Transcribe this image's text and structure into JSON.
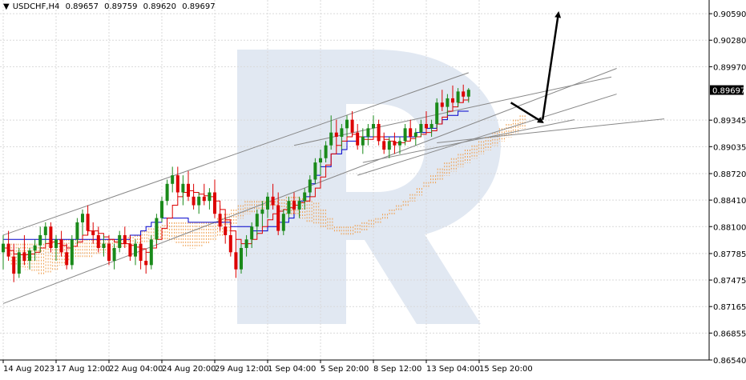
{
  "header": {
    "symbol_label": "USDCHF,H4",
    "open": "0.89657",
    "high": "0.89759",
    "low": "0.89620",
    "close": "0.89697"
  },
  "chart_data": {
    "type": "candlestick",
    "title": "USDCHF,H4",
    "ylim": [
      0.8654,
      0.9075
    ],
    "y_ticks": [
      "0.90590",
      "0.90280",
      "0.89970",
      "0.89345",
      "0.89035",
      "0.88720",
      "0.88410",
      "0.88100",
      "0.87785",
      "0.87475",
      "0.87165",
      "0.86855",
      "0.86540"
    ],
    "x_ticks": [
      "14 Aug 2023",
      "17 Aug 12:00",
      "22 Aug 04:00",
      "24 Aug 20:00",
      "29 Aug 12:00",
      "1 Sep 04:00",
      "5 Sep 20:00",
      "8 Sep 12:00",
      "13 Sep 04:00",
      "15 Sep 20:00"
    ],
    "current_price_label": "0.89697",
    "current_price": 0.89697,
    "colors": {
      "bull": "#1a8a1a",
      "bear": "#dd0000",
      "tenkan": "#dd0000",
      "kijun": "#0000cc",
      "cloud": "#f0a050",
      "channel": "#888888",
      "arrow": "#000000",
      "grid": "#d9d9d9",
      "watermark": "#dce4f0"
    },
    "candles_ohlc": [
      [
        0.878,
        0.88,
        0.876,
        0.879
      ],
      [
        0.879,
        0.8805,
        0.877,
        0.8775
      ],
      [
        0.8775,
        0.879,
        0.8745,
        0.8755
      ],
      [
        0.8755,
        0.8785,
        0.875,
        0.878
      ],
      [
        0.878,
        0.88,
        0.8765,
        0.877
      ],
      [
        0.877,
        0.8785,
        0.876,
        0.8782
      ],
      [
        0.8782,
        0.8795,
        0.877,
        0.8788
      ],
      [
        0.8788,
        0.881,
        0.878,
        0.88
      ],
      [
        0.88,
        0.8815,
        0.879,
        0.881
      ],
      [
        0.881,
        0.8815,
        0.878,
        0.8785
      ],
      [
        0.8785,
        0.88,
        0.877,
        0.8795
      ],
      [
        0.8795,
        0.8805,
        0.8775,
        0.878
      ],
      [
        0.878,
        0.879,
        0.876,
        0.8765
      ],
      [
        0.8765,
        0.88,
        0.876,
        0.8795
      ],
      [
        0.8795,
        0.882,
        0.879,
        0.8815
      ],
      [
        0.8815,
        0.883,
        0.88,
        0.8825
      ],
      [
        0.8825,
        0.8835,
        0.88,
        0.8805
      ],
      [
        0.8805,
        0.8815,
        0.879,
        0.88
      ],
      [
        0.88,
        0.881,
        0.878,
        0.8785
      ],
      [
        0.8785,
        0.88,
        0.8775,
        0.879
      ],
      [
        0.879,
        0.88,
        0.8765,
        0.877
      ],
      [
        0.877,
        0.879,
        0.876,
        0.8785
      ],
      [
        0.8785,
        0.8805,
        0.878,
        0.88
      ],
      [
        0.88,
        0.881,
        0.8785,
        0.879
      ],
      [
        0.879,
        0.88,
        0.877,
        0.8775
      ],
      [
        0.8775,
        0.8795,
        0.8765,
        0.879
      ],
      [
        0.879,
        0.88,
        0.876,
        0.877
      ],
      [
        0.877,
        0.878,
        0.8755,
        0.8765
      ],
      [
        0.8765,
        0.88,
        0.876,
        0.8795
      ],
      [
        0.8795,
        0.8825,
        0.879,
        0.882
      ],
      [
        0.882,
        0.8845,
        0.8815,
        0.884
      ],
      [
        0.884,
        0.8865,
        0.8835,
        0.886
      ],
      [
        0.886,
        0.888,
        0.885,
        0.887
      ],
      [
        0.887,
        0.888,
        0.8845,
        0.885
      ],
      [
        0.885,
        0.887,
        0.8835,
        0.886
      ],
      [
        0.886,
        0.8875,
        0.884,
        0.8845
      ],
      [
        0.8845,
        0.886,
        0.883,
        0.8835
      ],
      [
        0.8835,
        0.885,
        0.8825,
        0.8845
      ],
      [
        0.8845,
        0.886,
        0.8835,
        0.884
      ],
      [
        0.884,
        0.8855,
        0.883,
        0.885
      ],
      [
        0.885,
        0.8865,
        0.882,
        0.8825
      ],
      [
        0.8825,
        0.8835,
        0.8805,
        0.881
      ],
      [
        0.881,
        0.8825,
        0.879,
        0.88
      ],
      [
        0.88,
        0.881,
        0.8775,
        0.878
      ],
      [
        0.878,
        0.8795,
        0.875,
        0.876
      ],
      [
        0.876,
        0.879,
        0.8755,
        0.8785
      ],
      [
        0.8785,
        0.88,
        0.8775,
        0.8795
      ],
      [
        0.8795,
        0.8815,
        0.8785,
        0.881
      ],
      [
        0.881,
        0.883,
        0.88,
        0.8825
      ],
      [
        0.8825,
        0.884,
        0.881,
        0.883
      ],
      [
        0.883,
        0.885,
        0.882,
        0.8845
      ],
      [
        0.8845,
        0.886,
        0.883,
        0.8835
      ],
      [
        0.8835,
        0.885,
        0.88,
        0.8805
      ],
      [
        0.8805,
        0.883,
        0.88,
        0.8825
      ],
      [
        0.8825,
        0.8845,
        0.882,
        0.884
      ],
      [
        0.884,
        0.885,
        0.8825,
        0.883
      ],
      [
        0.883,
        0.8845,
        0.882,
        0.884
      ],
      [
        0.884,
        0.8855,
        0.883,
        0.885
      ],
      [
        0.885,
        0.887,
        0.8845,
        0.8865
      ],
      [
        0.8865,
        0.889,
        0.886,
        0.8885
      ],
      [
        0.8885,
        0.89,
        0.887,
        0.889
      ],
      [
        0.889,
        0.891,
        0.8885,
        0.8905
      ],
      [
        0.8905,
        0.894,
        0.89,
        0.892
      ],
      [
        0.892,
        0.8935,
        0.8905,
        0.8915
      ],
      [
        0.8915,
        0.893,
        0.89,
        0.8925
      ],
      [
        0.8925,
        0.894,
        0.8915,
        0.8935
      ],
      [
        0.8935,
        0.8945,
        0.8915,
        0.892
      ],
      [
        0.892,
        0.893,
        0.89,
        0.8905
      ],
      [
        0.8905,
        0.8925,
        0.8895,
        0.8915
      ],
      [
        0.8915,
        0.893,
        0.8905,
        0.8925
      ],
      [
        0.8925,
        0.894,
        0.8915,
        0.893
      ],
      [
        0.893,
        0.8935,
        0.8905,
        0.891
      ],
      [
        0.891,
        0.892,
        0.8895,
        0.89
      ],
      [
        0.89,
        0.8915,
        0.889,
        0.891
      ],
      [
        0.891,
        0.892,
        0.8895,
        0.8905
      ],
      [
        0.8905,
        0.8915,
        0.8895,
        0.891
      ],
      [
        0.891,
        0.893,
        0.8905,
        0.8925
      ],
      [
        0.8925,
        0.8935,
        0.891,
        0.8915
      ],
      [
        0.8915,
        0.8925,
        0.8905,
        0.892
      ],
      [
        0.892,
        0.8935,
        0.8915,
        0.893
      ],
      [
        0.893,
        0.8945,
        0.892,
        0.8925
      ],
      [
        0.8925,
        0.8935,
        0.8915,
        0.893
      ],
      [
        0.893,
        0.896,
        0.8925,
        0.8955
      ],
      [
        0.8955,
        0.897,
        0.8945,
        0.895
      ],
      [
        0.895,
        0.8965,
        0.894,
        0.896
      ],
      [
        0.896,
        0.8975,
        0.895,
        0.8955
      ],
      [
        0.8955,
        0.8972,
        0.895,
        0.8968
      ],
      [
        0.8968,
        0.8976,
        0.8955,
        0.8962
      ],
      [
        0.8962,
        0.8972,
        0.8955,
        0.897
      ]
    ],
    "tenkan_sen": [
      0.8785,
      0.8782,
      0.8778,
      0.8777,
      0.8777,
      0.8778,
      0.878,
      0.8785,
      0.879,
      0.8792,
      0.879,
      0.8788,
      0.8785,
      0.8787,
      0.8792,
      0.88,
      0.8805,
      0.8805,
      0.8802,
      0.8798,
      0.8795,
      0.8792,
      0.879,
      0.879,
      0.8788,
      0.8786,
      0.8784,
      0.878,
      0.8785,
      0.8795,
      0.8808,
      0.882,
      0.8835,
      0.8845,
      0.885,
      0.8852,
      0.885,
      0.8848,
      0.8846,
      0.8845,
      0.884,
      0.883,
      0.8818,
      0.8805,
      0.8795,
      0.879,
      0.879,
      0.8795,
      0.8802,
      0.881,
      0.8818,
      0.8825,
      0.8828,
      0.883,
      0.8832,
      0.8835,
      0.8838,
      0.884,
      0.8845,
      0.8855,
      0.8868,
      0.8882,
      0.8895,
      0.8905,
      0.891,
      0.8915,
      0.8918,
      0.8915,
      0.8912,
      0.8912,
      0.8915,
      0.8915,
      0.8912,
      0.891,
      0.8908,
      0.8908,
      0.891,
      0.8913,
      0.8915,
      0.8918,
      0.892,
      0.8922,
      0.893,
      0.8938,
      0.8945,
      0.895,
      0.8955,
      0.8958,
      0.8962
    ],
    "kijun_sen": [
      0.8795,
      0.8795,
      0.8795,
      0.8795,
      0.8795,
      0.8795,
      0.8795,
      0.8795,
      0.8795,
      0.8795,
      0.8795,
      0.8795,
      0.8795,
      0.8795,
      0.8795,
      0.8795,
      0.8795,
      0.8795,
      0.8795,
      0.8795,
      0.8795,
      0.8795,
      0.8795,
      0.8795,
      0.88,
      0.88,
      0.8805,
      0.881,
      0.8815,
      0.8815,
      0.882,
      0.882,
      0.882,
      0.882,
      0.882,
      0.8815,
      0.8815,
      0.8815,
      0.8815,
      0.8815,
      0.8815,
      0.8815,
      0.8815,
      0.881,
      0.881,
      0.881,
      0.881,
      0.8805,
      0.8805,
      0.8805,
      0.881,
      0.881,
      0.8815,
      0.8815,
      0.882,
      0.8835,
      0.884,
      0.8845,
      0.886,
      0.887,
      0.888,
      0.888,
      0.8895,
      0.8895,
      0.89,
      0.891,
      0.891,
      0.8915,
      0.8915,
      0.8915,
      0.8915,
      0.8915,
      0.8915,
      0.8915,
      0.8915,
      0.8915,
      0.8915,
      0.8915,
      0.892,
      0.892,
      0.8925,
      0.8925,
      0.893,
      0.8935,
      0.894,
      0.894,
      0.8945,
      0.8945,
      0.8945
    ],
    "kumo": {
      "span_a": [
        0.877,
        0.8768,
        0.8765,
        0.8763,
        0.876,
        0.8762,
        0.8765,
        0.877,
        0.8775,
        0.8778,
        0.878,
        0.878,
        0.8782,
        0.8785,
        0.8788,
        0.879,
        0.8792,
        0.8795,
        0.8795,
        0.8796,
        0.8798,
        0.88,
        0.88,
        0.8798,
        0.8795,
        0.8792,
        0.879,
        0.8792,
        0.8795,
        0.88,
        0.8805,
        0.881,
        0.8818,
        0.8825,
        0.883,
        0.8832,
        0.8835,
        0.8838,
        0.884,
        0.8842,
        0.8845,
        0.8845,
        0.8843,
        0.884,
        0.8838,
        0.883,
        0.882,
        0.881,
        0.8805,
        0.8805,
        0.8808,
        0.881,
        0.8815,
        0.882,
        0.8825,
        0.883,
        0.8835,
        0.884,
        0.8848,
        0.8855,
        0.8862,
        0.887,
        0.8878,
        0.8885,
        0.889,
        0.8895,
        0.89,
        0.8905,
        0.891,
        0.8915,
        0.892,
        0.8925,
        0.893,
        0.8935,
        0.894
      ],
      "span_b": [
        0.879,
        0.879,
        0.879,
        0.879,
        0.879,
        0.8792,
        0.8795,
        0.8795,
        0.8795,
        0.8795,
        0.8795,
        0.8795,
        0.8795,
        0.8795,
        0.8795,
        0.8795,
        0.8795,
        0.8798,
        0.88,
        0.8805,
        0.8808,
        0.881,
        0.8812,
        0.8815,
        0.8815,
        0.8815,
        0.8815,
        0.8815,
        0.8815,
        0.8815,
        0.882,
        0.8825,
        0.883,
        0.8835,
        0.884,
        0.884,
        0.884,
        0.884,
        0.8838,
        0.8835,
        0.883,
        0.8828,
        0.8825,
        0.882,
        0.8818,
        0.8815,
        0.8812,
        0.881,
        0.881,
        0.881,
        0.8812,
        0.8815,
        0.8818,
        0.882,
        0.8825,
        0.883,
        0.8835,
        0.884,
        0.8845,
        0.8852,
        0.886,
        0.8865,
        0.887,
        0.8875,
        0.888,
        0.8885,
        0.889,
        0.8895,
        0.89,
        0.8905,
        0.891,
        0.8915,
        0.892,
        0.8925,
        0.893
      ]
    },
    "channel_lines": [
      [
        [
          0,
          0.88
        ],
        [
          88,
          0.899
        ]
      ],
      [
        [
          0,
          0.872
        ],
        [
          116,
          0.8995
        ]
      ],
      [
        [
          55,
          0.8905
        ],
        [
          115,
          0.8985
        ]
      ],
      [
        [
          67,
          0.887
        ],
        [
          116,
          0.8965
        ]
      ],
      [
        [
          82,
          0.8908
        ],
        [
          125,
          0.8936
        ]
      ],
      [
        [
          68,
          0.8885
        ],
        [
          108,
          0.8935
        ]
      ]
    ],
    "arrows": [
      [
        [
          96,
          0.8955
        ],
        [
          102,
          0.8932
        ]
      ],
      [
        [
          102,
          0.8935
        ],
        [
          105,
          0.906
        ]
      ]
    ]
  }
}
